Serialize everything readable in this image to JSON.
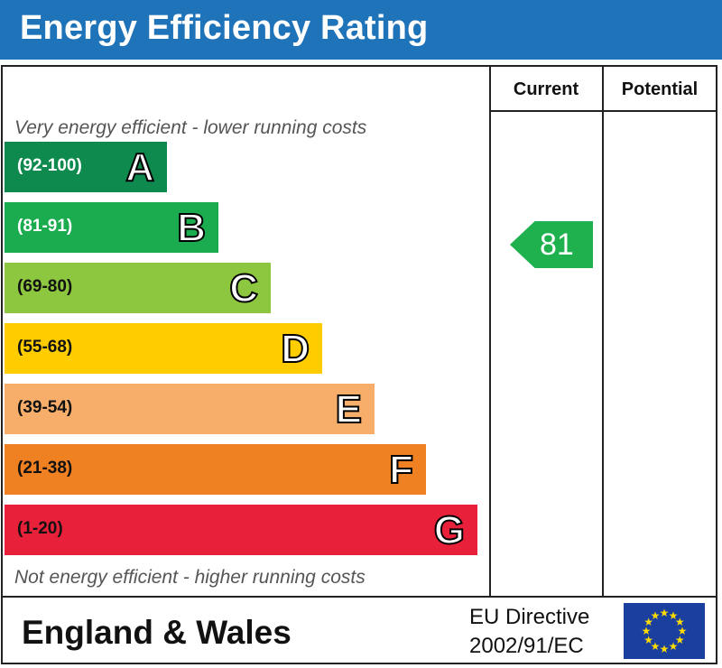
{
  "title": "Energy Efficiency Rating",
  "columns": {
    "current": "Current",
    "potential": "Potential"
  },
  "top_note": "Very energy efficient - lower running costs",
  "bottom_note": "Not energy efficient - higher running costs",
  "bands": [
    {
      "range": "(92-100)",
      "letter": "A",
      "color": "#0f8a4f",
      "range_color": "#ffffff"
    },
    {
      "range": "(81-91)",
      "letter": "B",
      "color": "#1aac4e",
      "range_color": "#ffffff"
    },
    {
      "range": "(69-80)",
      "letter": "C",
      "color": "#8dc63f",
      "range_color": "#111111"
    },
    {
      "range": "(55-68)",
      "letter": "D",
      "color": "#ffcc00",
      "range_color": "#111111"
    },
    {
      "range": "(39-54)",
      "letter": "E",
      "color": "#f7ae6b",
      "range_color": "#111111"
    },
    {
      "range": "(21-38)",
      "letter": "F",
      "color": "#f08122",
      "range_color": "#111111"
    },
    {
      "range": "(1-20)",
      "letter": "G",
      "color": "#e8203a",
      "range_color": "#111111"
    }
  ],
  "current_rating": {
    "value": "81",
    "band": "B",
    "color": "#1fb14d"
  },
  "footer": {
    "region": "England & Wales",
    "directive_line1": "EU Directive",
    "directive_line2": "2002/91/EC"
  },
  "colors": {
    "header_bg": "#1f73b9",
    "eu_flag": "#1a3f9e",
    "eu_stars": "#ffdd00"
  },
  "icons": {
    "eu_flag": "eu-flag-icon"
  }
}
